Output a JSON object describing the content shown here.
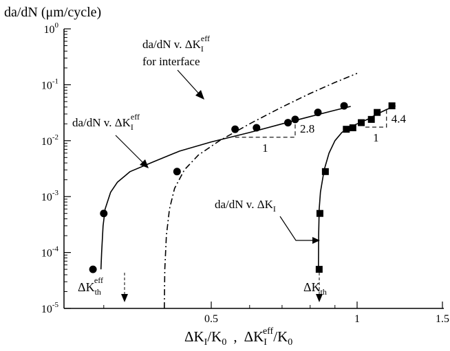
{
  "chart_data": {
    "type": "scatter",
    "x_scale": "log",
    "y_scale": "log",
    "xlim": [
      0.2,
      1.5
    ],
    "ylim": [
      1e-05,
      1
    ],
    "xlabel": {
      "base": "ΔK",
      "sub": "I",
      "tail": "/K",
      "tail_sub": "0",
      "sep": ",",
      "base2": "ΔK",
      "sub2": "I",
      "sup2": "eff",
      "tail2": "/K",
      "tail2_sub": "0"
    },
    "ylabel": "da/dN (μm/cycle)",
    "x_ticks": [
      {
        "value": 0.5,
        "label": "0.5"
      },
      {
        "value": 1,
        "label": "1"
      },
      {
        "value": 1.5,
        "label": "1.5"
      }
    ],
    "y_ticks": [
      {
        "value": 1e-05,
        "base": "10",
        "exp": "-5"
      },
      {
        "value": 0.0001,
        "base": "10",
        "exp": "-4"
      },
      {
        "value": 0.001,
        "base": "10",
        "exp": "-3"
      },
      {
        "value": 0.01,
        "base": "10",
        "exp": "-2"
      },
      {
        "value": 0.1,
        "base": "10",
        "exp": "-1"
      },
      {
        "value": 1,
        "base": "10",
        "exp": "0"
      }
    ],
    "grid": false,
    "series": [
      {
        "marker": "circle",
        "points": [
          [
            0.285,
            5e-05
          ],
          [
            0.3,
            0.0005
          ],
          [
            0.425,
            0.0028
          ],
          [
            0.56,
            0.016
          ],
          [
            0.62,
            0.017
          ],
          [
            0.72,
            0.021
          ],
          [
            0.745,
            0.024
          ],
          [
            0.83,
            0.032
          ],
          [
            0.94,
            0.042
          ]
        ]
      },
      {
        "marker": "square",
        "points": [
          [
            0.835,
            5e-05
          ],
          [
            0.838,
            0.0005
          ],
          [
            0.86,
            0.0028
          ],
          [
            0.95,
            0.016
          ],
          [
            0.98,
            0.017
          ],
          [
            1.02,
            0.021
          ],
          [
            1.07,
            0.024
          ],
          [
            1.1,
            0.032
          ],
          [
            1.18,
            0.042
          ]
        ]
      }
    ],
    "fit_curves": [
      {
        "style": "solid",
        "points": [
          [
            0.296,
            5e-05
          ],
          [
            0.297,
            0.0001
          ],
          [
            0.299,
            0.0003
          ],
          [
            0.302,
            0.0006
          ],
          [
            0.31,
            0.0012
          ],
          [
            0.32,
            0.0018
          ],
          [
            0.34,
            0.0028
          ],
          [
            0.38,
            0.0042
          ],
          [
            0.43,
            0.0065
          ],
          [
            0.5,
            0.0095
          ],
          [
            0.6,
            0.014
          ],
          [
            0.7,
            0.02
          ],
          [
            0.8,
            0.027
          ],
          [
            0.9,
            0.035
          ],
          [
            0.97,
            0.041
          ]
        ]
      },
      {
        "style": "dashdot",
        "points": [
          [
            0.4,
            1e-05
          ],
          [
            0.401,
            5e-05
          ],
          [
            0.404,
            0.0002
          ],
          [
            0.41,
            0.0006
          ],
          [
            0.42,
            0.0014
          ],
          [
            0.44,
            0.003
          ],
          [
            0.47,
            0.0055
          ],
          [
            0.52,
            0.01
          ],
          [
            0.6,
            0.02
          ],
          [
            0.7,
            0.04
          ],
          [
            0.8,
            0.07
          ],
          [
            0.9,
            0.11
          ],
          [
            1.0,
            0.16
          ]
        ]
      },
      {
        "style": "solid",
        "points": [
          [
            0.832,
            5e-05
          ],
          [
            0.833,
            0.0002
          ],
          [
            0.835,
            0.0006
          ],
          [
            0.84,
            0.0012
          ],
          [
            0.855,
            0.003
          ],
          [
            0.875,
            0.006
          ],
          [
            0.9,
            0.01
          ],
          [
            0.93,
            0.014
          ],
          [
            0.96,
            0.017
          ],
          [
            1.0,
            0.02
          ],
          [
            1.05,
            0.024
          ],
          [
            1.1,
            0.03
          ],
          [
            1.15,
            0.036
          ],
          [
            1.2,
            0.042
          ]
        ]
      }
    ],
    "slope_triangles": [
      {
        "p1": [
          0.56,
          0.0115
        ],
        "p2": [
          0.745,
          0.0115
        ],
        "p3": [
          0.745,
          0.024
        ],
        "run_label": "1",
        "rise_label": "2.8"
      },
      {
        "p1": [
          1.04,
          0.0175
        ],
        "p2": [
          1.15,
          0.0175
        ],
        "p3": [
          1.15,
          0.036
        ],
        "run_label": "1",
        "rise_label": "4.4"
      }
    ],
    "annotations": {
      "eff": {
        "base": "da/dN v. ΔK",
        "sub": "I",
        "sup": "eff"
      },
      "interface": {
        "base": "da/dN v. ΔK",
        "sub": "I",
        "sup": "eff",
        "line2": "for interface"
      },
      "plain": {
        "base": "da/dN v. ΔK",
        "sub": "I"
      },
      "th_eff": {
        "base": "ΔK",
        "sub": "th",
        "sup": "eff"
      },
      "th": {
        "base": "ΔK",
        "sub": "th"
      }
    }
  }
}
